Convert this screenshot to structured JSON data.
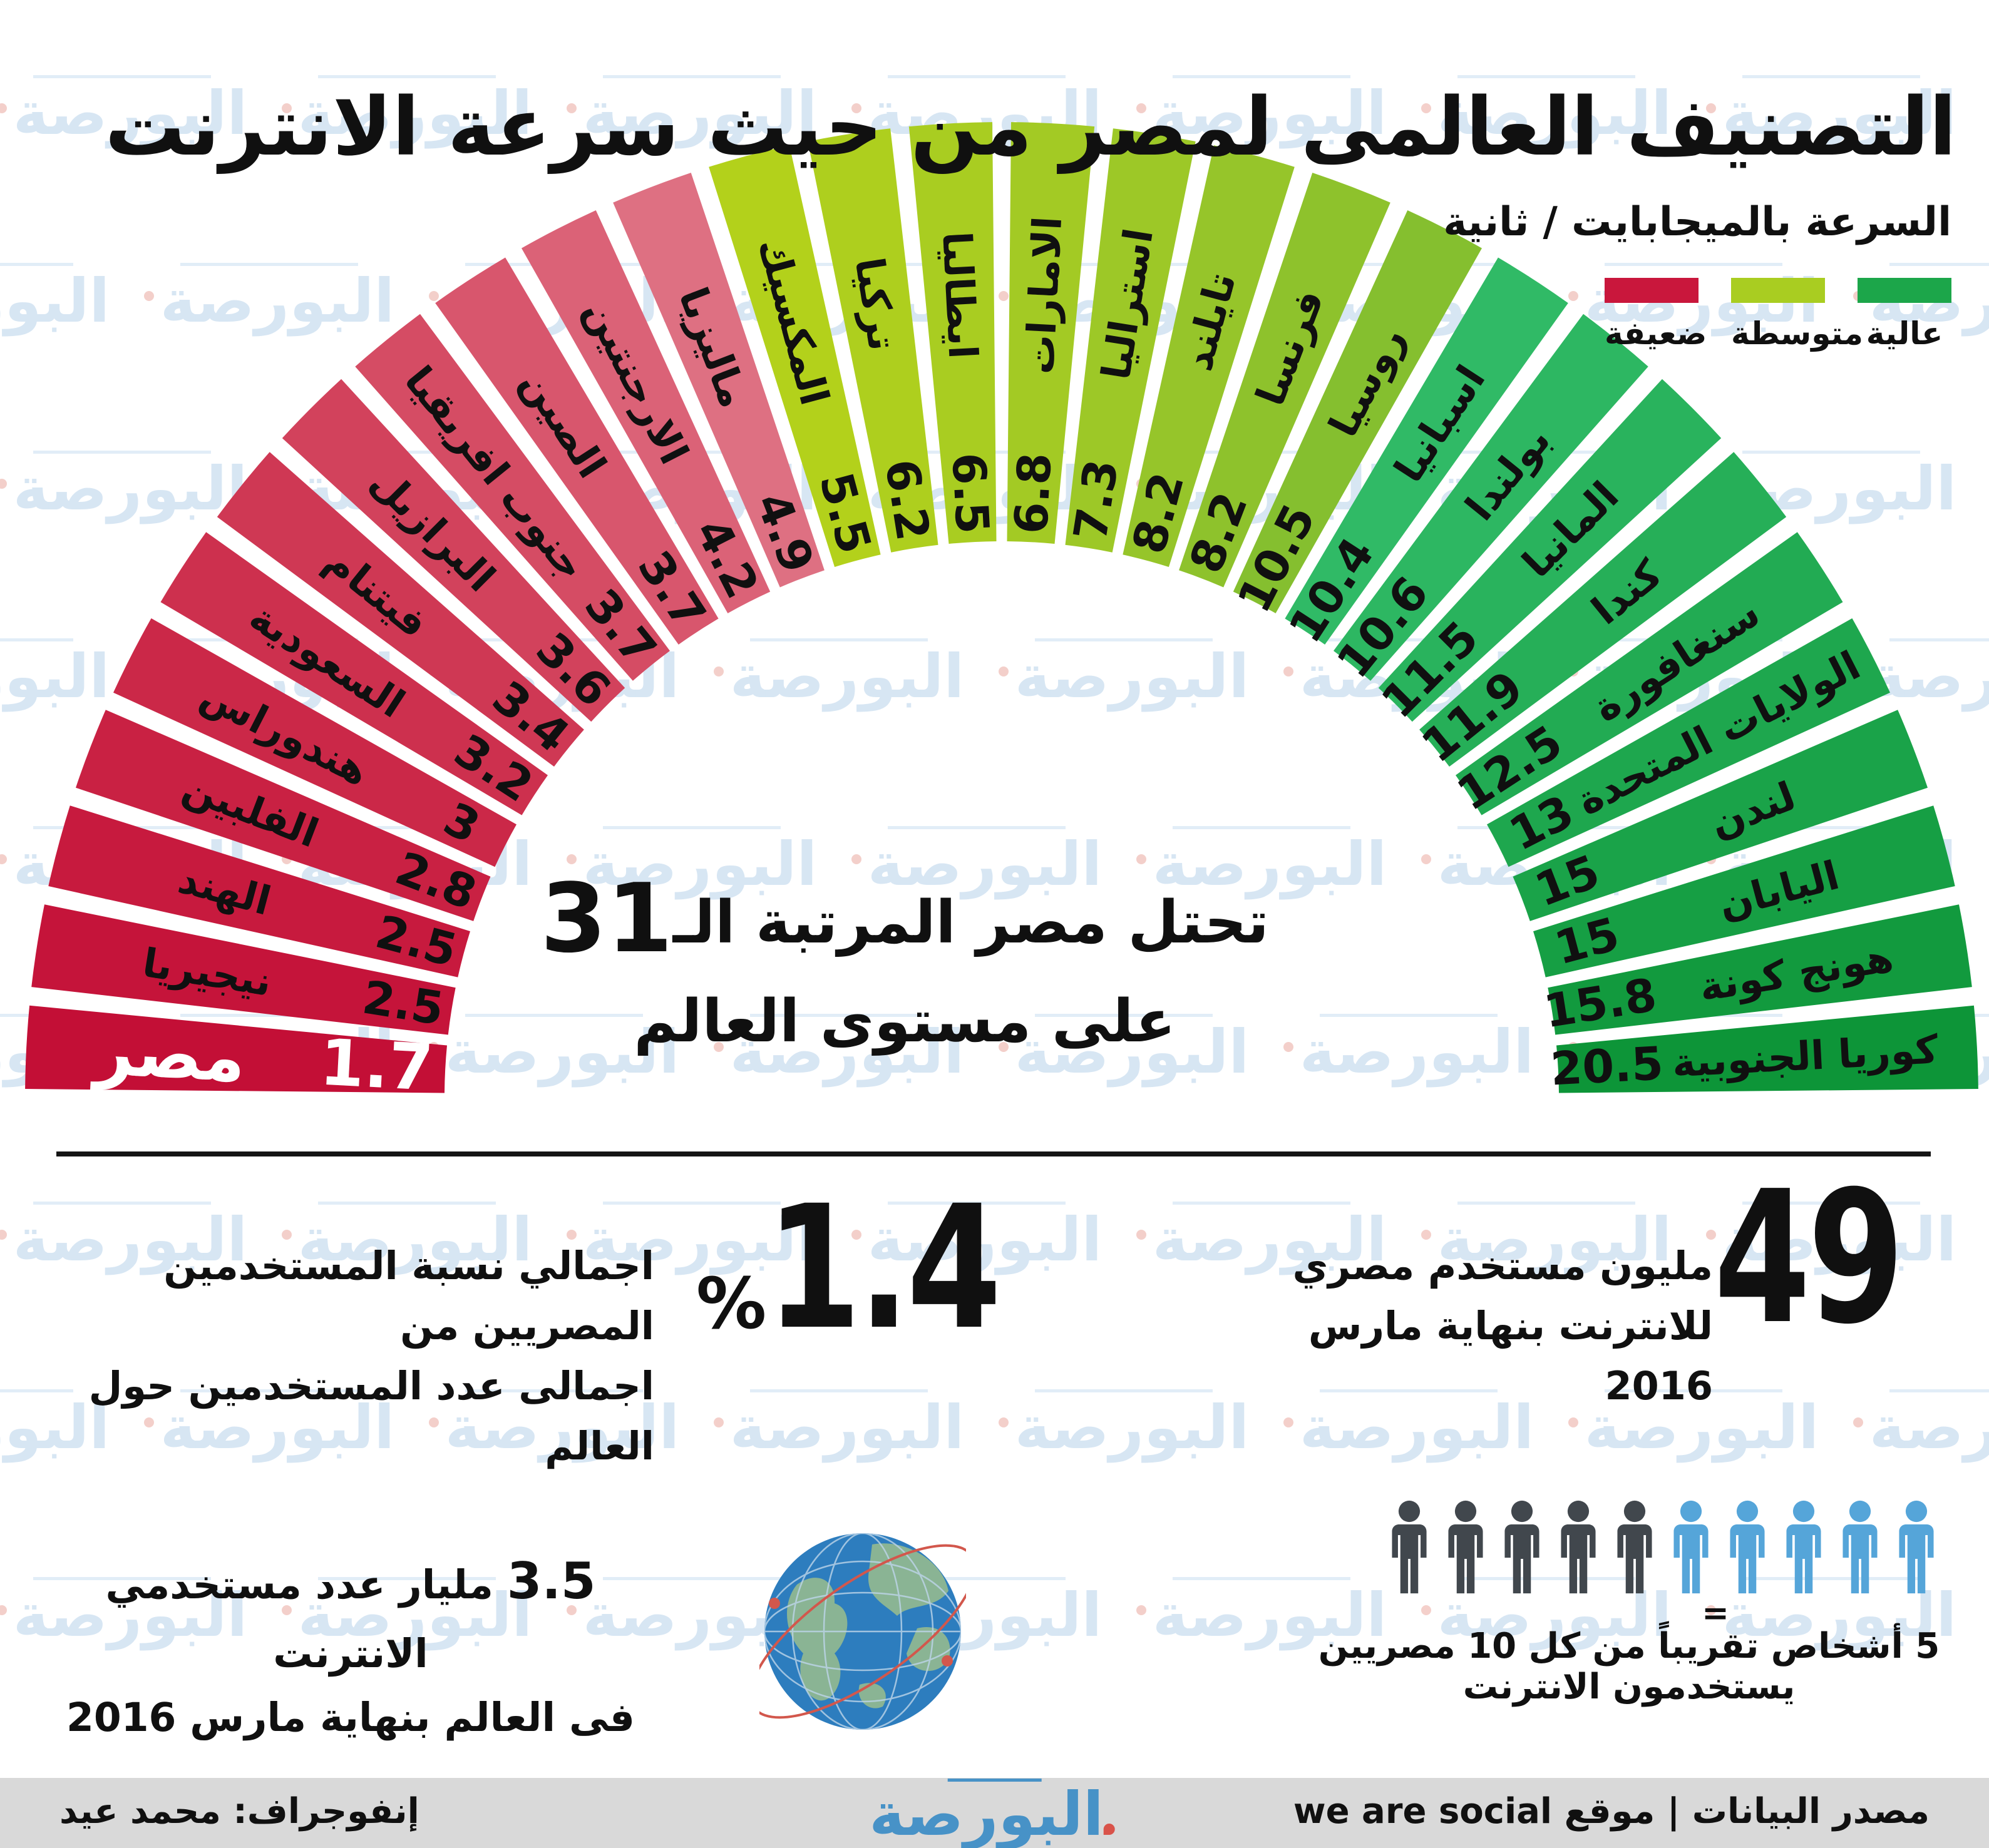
{
  "title": "التصنيف العالمى لمصر من حيث سرعة الانترنت",
  "watermark": {
    "text": "البورصة"
  },
  "legend": {
    "title": "السرعة بالميجابايت / ثانية",
    "items": [
      {
        "label": "ضعيفة",
        "color": "#c9173c"
      },
      {
        "label": "متوسطة",
        "color": "#a9cd21"
      },
      {
        "label": "عالية",
        "color": "#1ca64a"
      }
    ]
  },
  "chart_data": {
    "type": "radial-fan",
    "description": "30 countries ranked by average internet speed, fan gauge from weakest (left, red) to fastest (right, green)",
    "unit": "ميجابايت / ثانية",
    "value_range": [
      1.7,
      20.5
    ],
    "series": [
      {
        "country": "مصر",
        "value": 1.7,
        "band": "ضعيفة",
        "color": "#c30f36",
        "highlight": true,
        "text_color": "#ffffff"
      },
      {
        "country": "نيجيريا",
        "value": 2.5,
        "band": "ضعيفة",
        "color": "#c5143a"
      },
      {
        "country": "الهند",
        "value": 2.5,
        "band": "ضعيفة",
        "color": "#c71a3e"
      },
      {
        "country": "الفلبين",
        "value": 2.8,
        "band": "ضعيفة",
        "color": "#c92143"
      },
      {
        "country": "هندوراس",
        "value": 3,
        "band": "ضعيفة",
        "color": "#cb2848"
      },
      {
        "country": "السعودية",
        "value": 3.2,
        "band": "ضعيفة",
        "color": "#cd304e"
      },
      {
        "country": "فيتنام",
        "value": 3.4,
        "band": "ضعيفة",
        "color": "#cf3854"
      },
      {
        "country": "البرازيل",
        "value": 3.6,
        "band": "ضعيفة",
        "color": "#d2425c"
      },
      {
        "country": "جنوب افريقيا",
        "value": 3.7,
        "band": "ضعيفة",
        "color": "#d54c64"
      },
      {
        "country": "الصين",
        "value": 3.7,
        "band": "ضعيفة",
        "color": "#d8566d"
      },
      {
        "country": "الارجنتين",
        "value": 4.2,
        "band": "ضعيفة",
        "color": "#db6277"
      },
      {
        "country": "ماليزيا",
        "value": 4.9,
        "band": "ضعيفة",
        "color": "#de7082"
      },
      {
        "country": "المكسيك",
        "value": 5.5,
        "band": "متوسطة",
        "color": "#b3d11b"
      },
      {
        "country": "تركيا",
        "value": 6.2,
        "band": "متوسطة",
        "color": "#aecf1e"
      },
      {
        "country": "ايطاليا",
        "value": 6.5,
        "band": "متوسطة",
        "color": "#a9cd21"
      },
      {
        "country": "الامارات",
        "value": 6.8,
        "band": "متوسطة",
        "color": "#a3ca24"
      },
      {
        "country": "استراليا",
        "value": 7.3,
        "band": "متوسطة",
        "color": "#9dc827"
      },
      {
        "country": "تايلند",
        "value": 8.2,
        "band": "متوسطة",
        "color": "#96c52a"
      },
      {
        "country": "فرنسا",
        "value": 8.2,
        "band": "متوسطة",
        "color": "#8ec22c"
      },
      {
        "country": "روسيا",
        "value": 10.5,
        "band": "متوسطة",
        "color": "#85bf2f"
      },
      {
        "country": "اسبانيا",
        "value": 10.4,
        "band": "عالية",
        "color": "#30ba66"
      },
      {
        "country": "بولندا",
        "value": 10.6,
        "band": "عالية",
        "color": "#2db762"
      },
      {
        "country": "المانيا",
        "value": 11.5,
        "band": "عالية",
        "color": "#29b35d"
      },
      {
        "country": "كندا",
        "value": 11.9,
        "band": "عالية",
        "color": "#26af58"
      },
      {
        "country": "سنغافورة",
        "value": 12.5,
        "band": "عالية",
        "color": "#22ab53"
      },
      {
        "country": "الولايات المتحدة",
        "value": 13,
        "band": "عالية",
        "color": "#1ea74e"
      },
      {
        "country": "لندن",
        "value": 15,
        "band": "عالية",
        "color": "#1aa349"
      },
      {
        "country": "اليابان",
        "value": 15,
        "band": "عالية",
        "color": "#169f44"
      },
      {
        "country": "هونج كونة",
        "value": 15.8,
        "band": "عالية",
        "color": "#129a3e"
      },
      {
        "country": "كوريا الجنوبية",
        "value": 20.5,
        "band": "عالية",
        "color": "#0d9538"
      }
    ]
  },
  "center_note": {
    "line1_text": "تحتل مصر المرتبة الـ",
    "line1_number": "31",
    "line2": "على مستوى العالم"
  },
  "stats": {
    "egypt_users": {
      "number": "49",
      "line1": "مليون مستخدم مصري",
      "line2": "للانترنت بنهاية مارس 2016"
    },
    "egypt_share": {
      "number": "1.4",
      "symbol": "%",
      "line1": "اجمالي نسبة المستخدمين المصريين من",
      "line2": "اجمالى عدد المستخدمين حول العالم"
    },
    "world_users": {
      "number": "3.5",
      "line1": "مليار عدد مستخدمي الانترنت",
      "line2": "فى العالم بنهاية مارس 2016"
    },
    "usage_ratio": {
      "equals": "=",
      "caption": "5 أشخاص تقريباً من كل 10 مصريين يستخدمون الانترنت",
      "people_total": 10,
      "people_highlighted": 5,
      "gray_color": "#41474d",
      "blue_color": "#55a5d9"
    }
  },
  "footer": {
    "credit": "إنفوجراف: محمد عيد",
    "logo_text": "البورصة",
    "source": "مصدر البيانات | موقع we are social"
  }
}
